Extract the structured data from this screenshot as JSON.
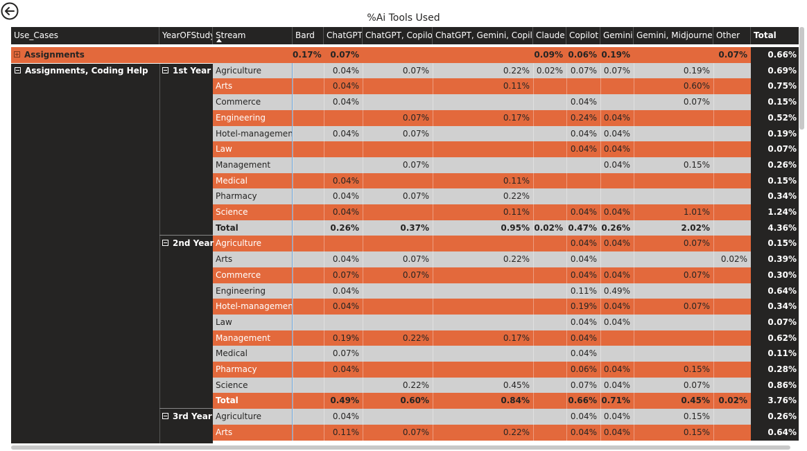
{
  "title": "%Ai Tools Used",
  "colors": {
    "orange": "#E3693C",
    "gray": "#D0D0D0",
    "dark": "#252423"
  },
  "columns": {
    "use_cases": "Use_Cases",
    "year": "YearOFStudy",
    "stream": "Stream",
    "tools": [
      "Bard",
      "ChatGPT",
      "ChatGPT, Copilot",
      "ChatGPT, Gemini, Copilot",
      "Claude",
      "Copilot",
      "Gemini",
      "Gemini, Midjourney",
      "Other"
    ],
    "total": "Total"
  },
  "groups": [
    {
      "label": "Assignments",
      "expanded": false
    },
    {
      "label": "Assignments, Coding Help",
      "expanded": true
    }
  ],
  "years": [
    "1st Year",
    "2nd Year",
    "3rd Year"
  ],
  "rows": [
    {
      "kind": "group",
      "color": "orange",
      "vals": [
        "0.17%",
        "0.07%",
        "",
        "",
        "0.09%",
        "0.06%",
        "0.19%",
        "",
        "0.07%"
      ],
      "total": "0.66%"
    },
    {
      "kind": "data",
      "color": "gray",
      "stream": "Agriculture",
      "vals": [
        "",
        "0.04%",
        "0.07%",
        "0.22%",
        "0.02%",
        "0.07%",
        "0.07%",
        "0.19%",
        ""
      ],
      "total": "0.69%"
    },
    {
      "kind": "data",
      "color": "orange",
      "stream": "Arts",
      "vals": [
        "",
        "0.04%",
        "",
        "0.11%",
        "",
        "",
        "",
        "0.60%",
        ""
      ],
      "total": "0.75%"
    },
    {
      "kind": "data",
      "color": "gray",
      "stream": "Commerce",
      "vals": [
        "",
        "0.04%",
        "",
        "",
        "",
        "0.04%",
        "",
        "0.07%",
        ""
      ],
      "total": "0.15%"
    },
    {
      "kind": "data",
      "color": "orange",
      "stream": "Engineering",
      "vals": [
        "",
        "",
        "0.07%",
        "0.17%",
        "",
        "0.24%",
        "0.04%",
        "",
        ""
      ],
      "total": "0.52%"
    },
    {
      "kind": "data",
      "color": "gray",
      "stream": "Hotel-management",
      "vals": [
        "",
        "0.04%",
        "0.07%",
        "",
        "",
        "0.04%",
        "0.04%",
        "",
        ""
      ],
      "total": "0.19%"
    },
    {
      "kind": "data",
      "color": "orange",
      "stream": "Law",
      "vals": [
        "",
        "",
        "",
        "",
        "",
        "0.04%",
        "0.04%",
        "",
        ""
      ],
      "total": "0.07%"
    },
    {
      "kind": "data",
      "color": "gray",
      "stream": "Management",
      "vals": [
        "",
        "",
        "0.07%",
        "",
        "",
        "",
        "0.04%",
        "0.15%",
        ""
      ],
      "total": "0.26%"
    },
    {
      "kind": "data",
      "color": "orange",
      "stream": "Medical",
      "vals": [
        "",
        "0.04%",
        "",
        "0.11%",
        "",
        "",
        "",
        "",
        ""
      ],
      "total": "0.15%"
    },
    {
      "kind": "data",
      "color": "gray",
      "stream": "Pharmacy",
      "vals": [
        "",
        "0.04%",
        "0.07%",
        "0.22%",
        "",
        "",
        "",
        "",
        ""
      ],
      "total": "0.34%"
    },
    {
      "kind": "data",
      "color": "orange",
      "stream": "Science",
      "vals": [
        "",
        "0.04%",
        "",
        "0.11%",
        "",
        "0.04%",
        "0.04%",
        "1.01%",
        ""
      ],
      "total": "1.24%"
    },
    {
      "kind": "subtotal",
      "color": "gray",
      "stream": "Total",
      "vals": [
        "",
        "0.26%",
        "0.37%",
        "0.95%",
        "0.02%",
        "0.47%",
        "0.26%",
        "2.02%",
        ""
      ],
      "total": "4.36%"
    },
    {
      "kind": "data",
      "color": "orange",
      "stream": "Agriculture",
      "vals": [
        "",
        "",
        "",
        "",
        "",
        "0.04%",
        "0.04%",
        "0.07%",
        ""
      ],
      "total": "0.15%"
    },
    {
      "kind": "data",
      "color": "gray",
      "stream": "Arts",
      "vals": [
        "",
        "0.04%",
        "0.07%",
        "0.22%",
        "",
        "0.04%",
        "",
        "",
        "0.02%"
      ],
      "total": "0.39%"
    },
    {
      "kind": "data",
      "color": "orange",
      "stream": "Commerce",
      "vals": [
        "",
        "0.07%",
        "0.07%",
        "",
        "",
        "0.04%",
        "0.04%",
        "0.07%",
        ""
      ],
      "total": "0.30%"
    },
    {
      "kind": "data",
      "color": "gray",
      "stream": "Engineering",
      "vals": [
        "",
        "0.04%",
        "",
        "",
        "",
        "0.11%",
        "0.49%",
        "",
        ""
      ],
      "total": "0.64%"
    },
    {
      "kind": "data",
      "color": "orange",
      "stream": "Hotel-management",
      "vals": [
        "",
        "0.04%",
        "",
        "",
        "",
        "0.19%",
        "0.04%",
        "0.07%",
        ""
      ],
      "total": "0.34%"
    },
    {
      "kind": "data",
      "color": "gray",
      "stream": "Law",
      "vals": [
        "",
        "",
        "",
        "",
        "",
        "0.04%",
        "0.04%",
        "",
        ""
      ],
      "total": "0.07%"
    },
    {
      "kind": "data",
      "color": "orange",
      "stream": "Management",
      "vals": [
        "",
        "0.19%",
        "0.22%",
        "0.17%",
        "",
        "0.04%",
        "",
        "",
        ""
      ],
      "total": "0.62%"
    },
    {
      "kind": "data",
      "color": "gray",
      "stream": "Medical",
      "vals": [
        "",
        "0.07%",
        "",
        "",
        "",
        "0.04%",
        "",
        "",
        ""
      ],
      "total": "0.11%"
    },
    {
      "kind": "data",
      "color": "orange",
      "stream": "Pharmacy",
      "vals": [
        "",
        "0.04%",
        "",
        "",
        "",
        "0.06%",
        "0.04%",
        "0.15%",
        ""
      ],
      "total": "0.28%"
    },
    {
      "kind": "data",
      "color": "gray",
      "stream": "Science",
      "vals": [
        "",
        "",
        "0.22%",
        "0.45%",
        "",
        "0.07%",
        "0.04%",
        "0.07%",
        ""
      ],
      "total": "0.86%"
    },
    {
      "kind": "subtotal",
      "color": "orange",
      "stream": "Total",
      "vals": [
        "",
        "0.49%",
        "0.60%",
        "0.84%",
        "",
        "0.66%",
        "0.71%",
        "0.45%",
        "0.02%"
      ],
      "total": "3.76%"
    },
    {
      "kind": "data",
      "color": "gray",
      "stream": "Agriculture",
      "vals": [
        "",
        "0.04%",
        "",
        "",
        "",
        "0.04%",
        "0.04%",
        "0.15%",
        ""
      ],
      "total": "0.26%"
    },
    {
      "kind": "data",
      "color": "orange",
      "stream": "Arts",
      "vals": [
        "",
        "0.11%",
        "0.07%",
        "0.22%",
        "",
        "0.04%",
        "0.04%",
        "0.15%",
        ""
      ],
      "total": "0.64%"
    }
  ]
}
